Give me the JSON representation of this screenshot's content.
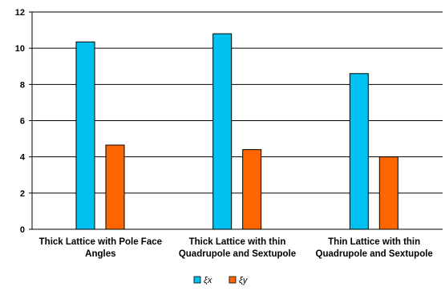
{
  "chart_data": {
    "type": "bar",
    "categories": [
      [
        "Thick Lattice with Pole Face",
        "Angles"
      ],
      [
        "Thick Lattice with thin",
        "Quadrupole and Sextupole"
      ],
      [
        "Thin Lattice with thin",
        "Quadrupole and Sextupole"
      ]
    ],
    "series": [
      {
        "name": "ξx",
        "values": [
          10.35,
          10.8,
          8.6
        ],
        "color": "#00C0F0"
      },
      {
        "name": "ξy",
        "values": [
          4.65,
          4.4,
          4.0
        ],
        "color": "#FF6600"
      }
    ],
    "ylim": [
      0,
      12
    ],
    "yticks": [
      0,
      2,
      4,
      6,
      8,
      10,
      12
    ],
    "grid": true,
    "legend": "bottom-center",
    "title": "",
    "xlabel": "",
    "ylabel": ""
  }
}
